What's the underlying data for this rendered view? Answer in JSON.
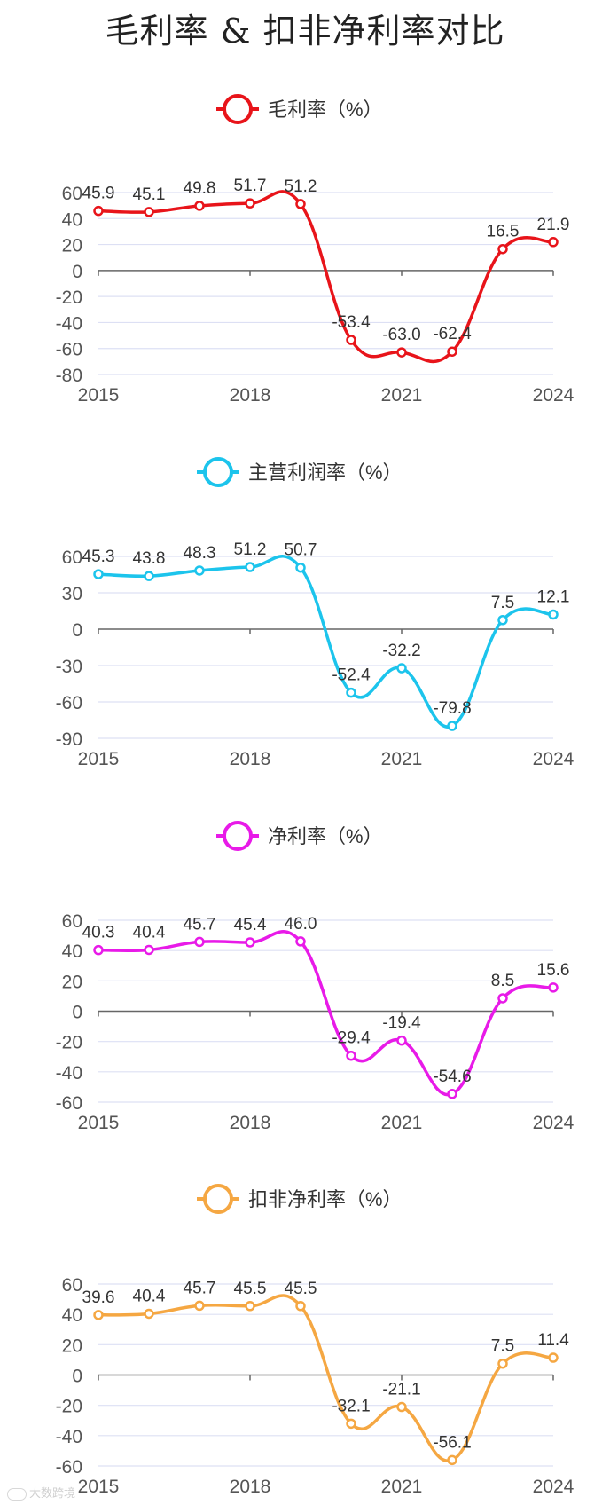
{
  "title": "毛利率 & 扣非净利率对比",
  "watermark": "大数跨境",
  "chart_data": [
    {
      "type": "line",
      "legend": "毛利率（%）",
      "color": "#e8141a",
      "x": [
        2015,
        2016,
        2017,
        2018,
        2019,
        2020,
        2021,
        2022,
        2023,
        2024
      ],
      "xticks": [
        "2015",
        "2018",
        "2021",
        "2024"
      ],
      "values": [
        45.9,
        45.1,
        49.8,
        51.7,
        51.2,
        -53.4,
        -63.0,
        -62.4,
        16.5,
        21.9
      ],
      "labels": [
        "45.9",
        "45.1",
        "49.8",
        "51.7",
        "51.2",
        "-53.4",
        "-63.0",
        "-62.4",
        "16.5",
        "21.9"
      ],
      "ylim": [
        -80,
        60
      ],
      "yticks": [
        -80,
        -60,
        -40,
        -20,
        0,
        20,
        40,
        60
      ]
    },
    {
      "type": "line",
      "legend": "主营利润率（%）",
      "color": "#1cc4ec",
      "x": [
        2015,
        2016,
        2017,
        2018,
        2019,
        2020,
        2021,
        2022,
        2023,
        2024
      ],
      "xticks": [
        "2015",
        "2018",
        "2021",
        "2024"
      ],
      "values": [
        45.3,
        43.8,
        48.3,
        51.2,
        50.7,
        -52.4,
        -32.2,
        -79.8,
        7.5,
        12.1
      ],
      "labels": [
        "45.3",
        "43.8",
        "48.3",
        "51.2",
        "50.7",
        "-52.4",
        "-32.2",
        "-79.8",
        "7.5",
        "12.1"
      ],
      "ylim": [
        -90,
        60
      ],
      "yticks": [
        -90,
        -60,
        -30,
        0,
        30,
        60
      ]
    },
    {
      "type": "line",
      "legend": "净利率（%）",
      "color": "#e81ae8",
      "x": [
        2015,
        2016,
        2017,
        2018,
        2019,
        2020,
        2021,
        2022,
        2023,
        2024
      ],
      "xticks": [
        "2015",
        "2018",
        "2021",
        "2024"
      ],
      "values": [
        40.3,
        40.4,
        45.7,
        45.4,
        46.0,
        -29.4,
        -19.4,
        -54.6,
        8.5,
        15.6
      ],
      "labels": [
        "40.3",
        "40.4",
        "45.7",
        "45.4",
        "46.0",
        "-29.4",
        "-19.4",
        "-54.6",
        "8.5",
        "15.6"
      ],
      "ylim": [
        -60,
        60
      ],
      "yticks": [
        -60,
        -40,
        -20,
        0,
        20,
        40,
        60
      ]
    },
    {
      "type": "line",
      "legend": "扣非净利率（%）",
      "color": "#f5a742",
      "x": [
        2015,
        2016,
        2017,
        2018,
        2019,
        2020,
        2021,
        2022,
        2023,
        2024
      ],
      "xticks": [
        "2015",
        "2018",
        "2021",
        "2024"
      ],
      "values": [
        39.6,
        40.4,
        45.7,
        45.5,
        45.5,
        -32.1,
        -21.1,
        -56.1,
        7.5,
        11.4
      ],
      "labels": [
        "39.6",
        "40.4",
        "45.7",
        "45.5",
        "45.5",
        "-32.1",
        "-21.1",
        "-56.1",
        "7.5",
        "11.4"
      ],
      "ylim": [
        -60,
        60
      ],
      "yticks": [
        -60,
        -40,
        -20,
        0,
        20,
        40,
        60
      ]
    }
  ]
}
